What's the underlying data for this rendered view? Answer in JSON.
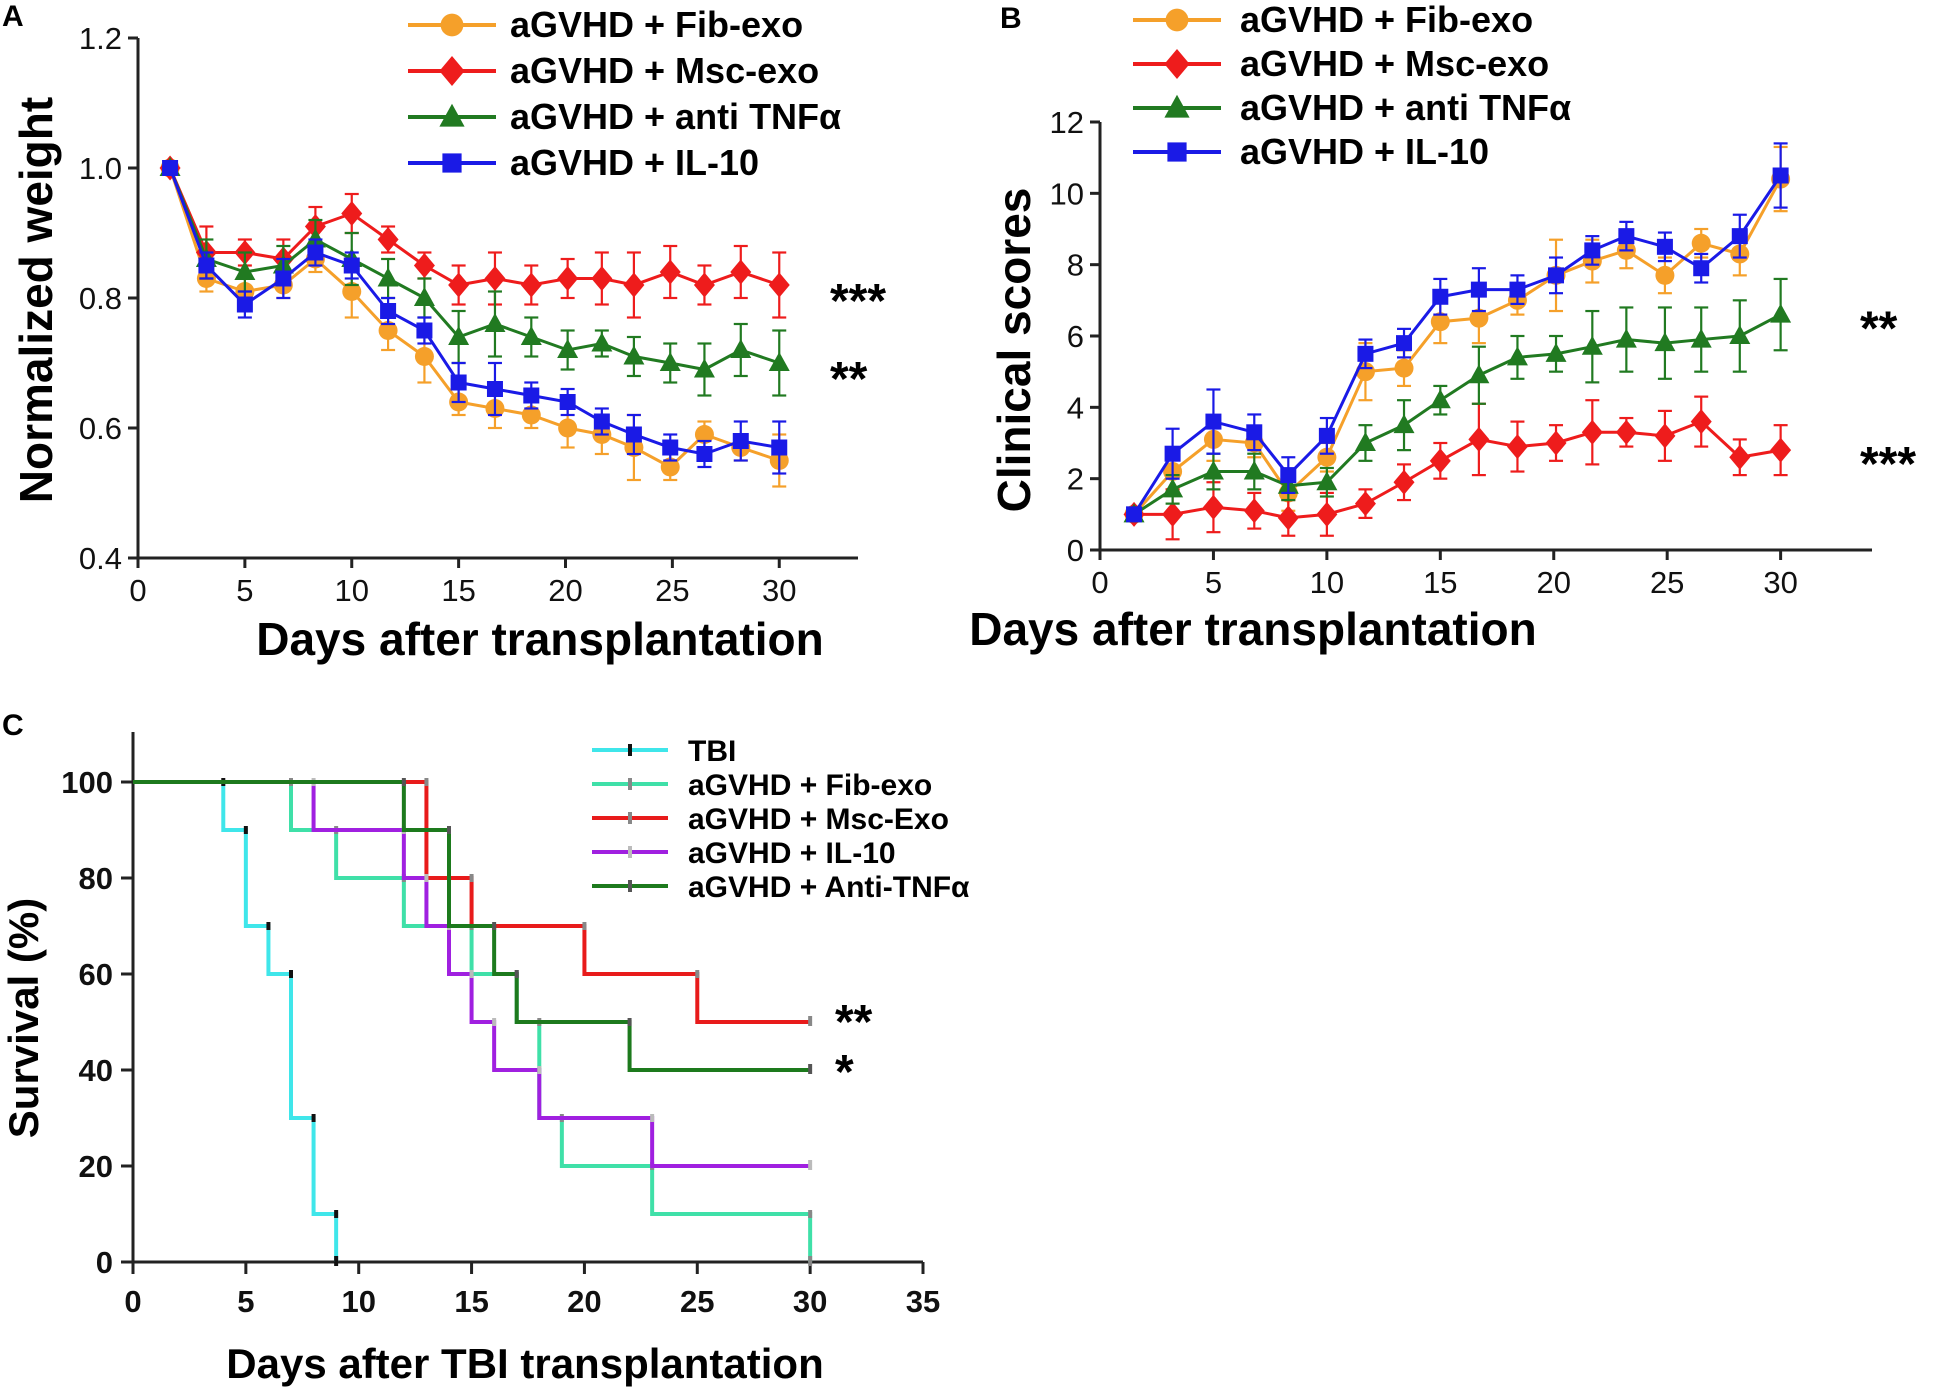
{
  "chart_data": [
    {
      "panel": "A",
      "type": "line",
      "xlabel": "Days after transplantation",
      "ylabel": "Normalized weight",
      "xlim": [
        0,
        32
      ],
      "ylim": [
        0.4,
        1.2
      ],
      "xticks": [
        "0",
        "5",
        "10",
        "15",
        "20",
        "25",
        "30"
      ],
      "yticks": [
        "0.4",
        "0.6",
        "0.8",
        "1.0",
        "1.2"
      ],
      "x": [
        1.5,
        3.2,
        5,
        6.8,
        8.3,
        10,
        11.7,
        13.4,
        15,
        16.7,
        18.4,
        20.1,
        21.7,
        23.2,
        24.9,
        26.5,
        28.2,
        30
      ],
      "series": [
        {
          "name": "aGVHD + Fib-exo",
          "color": "#F5A02A",
          "marker": "circle",
          "values": [
            1.0,
            0.83,
            0.81,
            0.82,
            0.86,
            0.81,
            0.75,
            0.71,
            0.64,
            0.63,
            0.62,
            0.6,
            0.59,
            0.57,
            0.54,
            0.59,
            0.57,
            0.55
          ],
          "errors": [
            0.01,
            0.02,
            0.02,
            0.02,
            0.02,
            0.04,
            0.03,
            0.04,
            0.02,
            0.03,
            0.02,
            0.03,
            0.03,
            0.05,
            0.02,
            0.02,
            0.02,
            0.04
          ]
        },
        {
          "name": "aGVHD + Msc-exo",
          "color": "#EE1C1C",
          "marker": "diamond",
          "values": [
            1.0,
            0.87,
            0.87,
            0.86,
            0.91,
            0.93,
            0.89,
            0.85,
            0.82,
            0.83,
            0.82,
            0.83,
            0.83,
            0.82,
            0.84,
            0.82,
            0.84,
            0.82
          ],
          "errors": [
            0.01,
            0.04,
            0.02,
            0.03,
            0.03,
            0.03,
            0.02,
            0.02,
            0.03,
            0.04,
            0.03,
            0.03,
            0.04,
            0.05,
            0.04,
            0.03,
            0.04,
            0.05
          ]
        },
        {
          "name": "aGVHD + anti TNFα",
          "color": "#217A21",
          "marker": "triangle",
          "values": [
            1.0,
            0.86,
            0.84,
            0.85,
            0.89,
            0.86,
            0.83,
            0.8,
            0.74,
            0.76,
            0.74,
            0.72,
            0.73,
            0.71,
            0.7,
            0.69,
            0.72,
            0.7
          ],
          "errors": [
            0.01,
            0.03,
            0.03,
            0.03,
            0.03,
            0.04,
            0.03,
            0.03,
            0.04,
            0.05,
            0.03,
            0.03,
            0.02,
            0.03,
            0.03,
            0.04,
            0.04,
            0.05
          ]
        },
        {
          "name": "aGVHD + IL-10",
          "color": "#1A1AE6",
          "marker": "square",
          "values": [
            1.0,
            0.85,
            0.79,
            0.83,
            0.87,
            0.85,
            0.78,
            0.75,
            0.67,
            0.66,
            0.65,
            0.64,
            0.61,
            0.59,
            0.57,
            0.56,
            0.58,
            0.57
          ],
          "errors": [
            0.01,
            0.02,
            0.02,
            0.03,
            0.02,
            0.02,
            0.02,
            0.02,
            0.03,
            0.04,
            0.02,
            0.02,
            0.02,
            0.03,
            0.02,
            0.02,
            0.03,
            0.04
          ]
        }
      ],
      "annotations": [
        {
          "text": "***",
          "series": "aGVHD + Msc-exo"
        },
        {
          "text": "**",
          "series": "aGVHD + anti TNFα"
        }
      ]
    },
    {
      "panel": "B",
      "type": "line",
      "xlabel": "Days after transplantation",
      "ylabel": "Clinical scores",
      "xlim": [
        0,
        32
      ],
      "ylim": [
        0,
        12
      ],
      "xticks": [
        "0",
        "5",
        "10",
        "15",
        "20",
        "25",
        "30"
      ],
      "yticks": [
        "0",
        "2",
        "4",
        "6",
        "8",
        "10",
        "12"
      ],
      "x": [
        1.5,
        3.2,
        5,
        6.8,
        8.3,
        10,
        11.7,
        13.4,
        15,
        16.7,
        18.4,
        20.1,
        21.7,
        23.2,
        24.9,
        26.5,
        28.2,
        30
      ],
      "series": [
        {
          "name": "aGVHD + Fib-exo",
          "color": "#F5A02A",
          "marker": "circle",
          "values": [
            1.0,
            2.2,
            3.1,
            3.0,
            1.6,
            2.6,
            5.0,
            5.1,
            6.4,
            6.5,
            7.0,
            7.7,
            8.1,
            8.4,
            7.7,
            8.6,
            8.3,
            10.4
          ],
          "errors": [
            0.1,
            0.5,
            0.6,
            0.4,
            0.5,
            0.4,
            0.8,
            0.5,
            0.6,
            0.7,
            0.4,
            1.0,
            0.6,
            0.5,
            0.5,
            0.4,
            0.6,
            0.9
          ]
        },
        {
          "name": "aGVHD + Msc-exo",
          "color": "#EE1C1C",
          "marker": "diamond",
          "values": [
            1.0,
            1.0,
            1.2,
            1.1,
            0.9,
            1.0,
            1.3,
            1.9,
            2.5,
            3.1,
            2.9,
            3.0,
            3.3,
            3.3,
            3.2,
            3.6,
            2.6,
            2.8
          ],
          "errors": [
            0.1,
            0.7,
            0.7,
            0.5,
            0.5,
            0.6,
            0.4,
            0.5,
            0.5,
            1.0,
            0.7,
            0.5,
            0.9,
            0.4,
            0.7,
            0.7,
            0.5,
            0.7
          ]
        },
        {
          "name": "aGVHD + anti TNFα",
          "color": "#217A21",
          "marker": "triangle",
          "values": [
            1.0,
            1.7,
            2.2,
            2.2,
            1.8,
            1.9,
            3.0,
            3.5,
            4.2,
            4.9,
            5.4,
            5.5,
            5.7,
            5.9,
            5.8,
            5.9,
            6.0,
            6.6
          ],
          "errors": [
            0.1,
            0.4,
            0.5,
            0.5,
            0.4,
            0.4,
            0.5,
            0.7,
            0.4,
            0.8,
            0.6,
            0.5,
            1.0,
            0.9,
            1.0,
            0.9,
            1.0,
            1.0
          ]
        },
        {
          "name": "aGVHD + IL-10",
          "color": "#1A1AE6",
          "marker": "square",
          "values": [
            1.0,
            2.7,
            3.6,
            3.3,
            2.1,
            3.2,
            5.5,
            5.8,
            7.1,
            7.3,
            7.3,
            7.7,
            8.4,
            8.8,
            8.5,
            7.9,
            8.8,
            10.5
          ],
          "errors": [
            0.1,
            0.7,
            0.9,
            0.5,
            0.5,
            0.5,
            0.4,
            0.4,
            0.5,
            0.6,
            0.4,
            0.5,
            0.4,
            0.4,
            0.4,
            0.4,
            0.6,
            0.9
          ]
        }
      ],
      "annotations": [
        {
          "text": "**",
          "series": "aGVHD + anti TNFα"
        },
        {
          "text": "***",
          "series": "aGVHD + Msc-exo"
        }
      ]
    },
    {
      "panel": "C",
      "type": "line",
      "subtype": "survival-step",
      "xlabel": "Days after TBI transplantation",
      "ylabel": "Survival (%)",
      "xlim": [
        0,
        35
      ],
      "ylim": [
        0,
        110
      ],
      "xticks": [
        "0",
        "5",
        "10",
        "15",
        "20",
        "25",
        "30",
        "35"
      ],
      "yticks": [
        "0",
        "20",
        "40",
        "60",
        "80",
        "100"
      ],
      "series": [
        {
          "name": "TBI",
          "color": "#3FE6EA",
          "tick": "#111111",
          "steps": [
            [
              0,
              100
            ],
            [
              4,
              90
            ],
            [
              5,
              70
            ],
            [
              6,
              60
            ],
            [
              7,
              30
            ],
            [
              8,
              10
            ],
            [
              9,
              0
            ]
          ],
          "end": 9
        },
        {
          "name": "aGVHD + Fib-exo",
          "color": "#3FE0A8",
          "tick": "#888888",
          "steps": [
            [
              0,
              100
            ],
            [
              7,
              90
            ],
            [
              9,
              80
            ],
            [
              12,
              70
            ],
            [
              15,
              60
            ],
            [
              17,
              50
            ],
            [
              18,
              30
            ],
            [
              19,
              20
            ],
            [
              23,
              10
            ],
            [
              30,
              0
            ]
          ],
          "end": 30
        },
        {
          "name": "aGVHD + Msc-Exo",
          "color": "#E81B1B",
          "tick": "#888888",
          "steps": [
            [
              0,
              100
            ],
            [
              13,
              80
            ],
            [
              15,
              70
            ],
            [
              20,
              60
            ],
            [
              25,
              50
            ]
          ],
          "end": 30
        },
        {
          "name": "aGVHD + IL-10",
          "color": "#A020E0",
          "tick": "#BBBBBB",
          "steps": [
            [
              0,
              100
            ],
            [
              8,
              90
            ],
            [
              12,
              80
            ],
            [
              13,
              70
            ],
            [
              14,
              60
            ],
            [
              15,
              50
            ],
            [
              16,
              40
            ],
            [
              18,
              30
            ],
            [
              23,
              20
            ]
          ],
          "end": 30
        },
        {
          "name": "aGVHD + Anti-TNFα",
          "color": "#1D7A1D",
          "tick": "#555555",
          "steps": [
            [
              0,
              100
            ],
            [
              12,
              90
            ],
            [
              14,
              70
            ],
            [
              16,
              60
            ],
            [
              17,
              50
            ],
            [
              22,
              40
            ]
          ],
          "end": 30
        }
      ],
      "annotations": [
        {
          "text": "**",
          "series": "aGVHD + Msc-Exo"
        },
        {
          "text": "*",
          "series": "aGVHD + Anti-TNFα"
        }
      ]
    }
  ]
}
